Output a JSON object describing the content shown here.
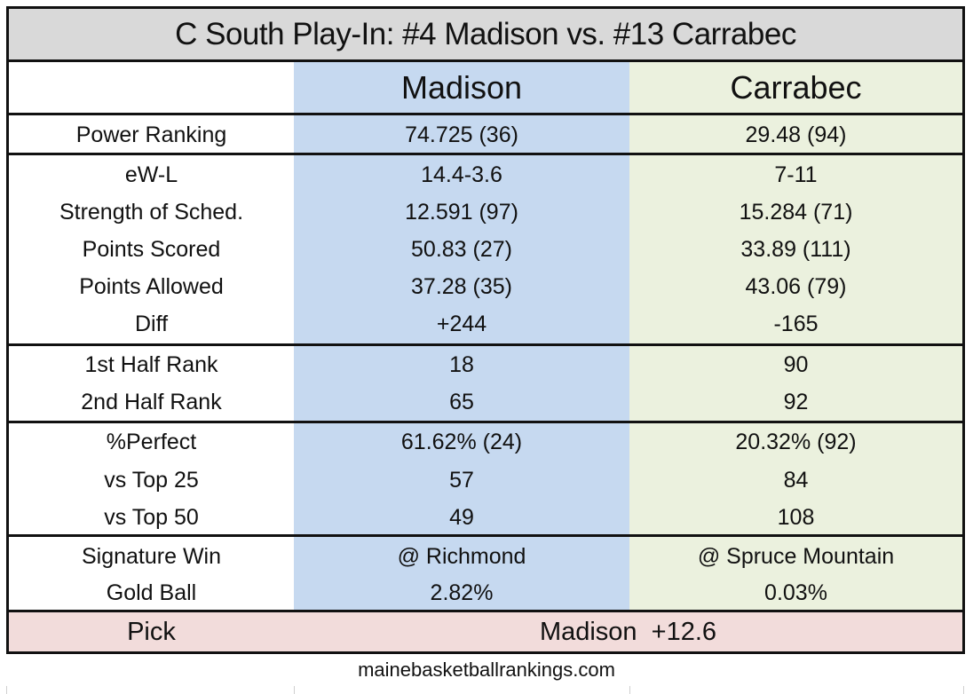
{
  "title": "C South Play-In: #4 Madison vs. #13 Carrabec",
  "teams": {
    "home": "Madison",
    "away": "Carrabec"
  },
  "groups": [
    {
      "rows": [
        {
          "label": "Power Ranking",
          "madison": "74.725 (36)",
          "carrabec": "29.48 (94)"
        }
      ]
    },
    {
      "rows": [
        {
          "label": "eW-L",
          "madison": "14.4-3.6",
          "carrabec": "7-11"
        },
        {
          "label": "Strength of Sched.",
          "madison": "12.591 (97)",
          "carrabec": "15.284 (71)"
        },
        {
          "label": "Points Scored",
          "madison": "50.83 (27)",
          "carrabec": "33.89 (111)"
        },
        {
          "label": "Points Allowed",
          "madison": "37.28 (35)",
          "carrabec": "43.06 (79)"
        },
        {
          "label": "Diff",
          "madison": "+244",
          "carrabec": "-165"
        }
      ]
    },
    {
      "rows": [
        {
          "label": "1st Half Rank",
          "madison": "18",
          "carrabec": "90"
        },
        {
          "label": "2nd Half Rank",
          "madison": "65",
          "carrabec": "92"
        }
      ]
    },
    {
      "rows": [
        {
          "label": "%Perfect",
          "madison": "61.62% (24)",
          "carrabec": "20.32% (92)"
        },
        {
          "label": "vs Top 25",
          "madison": "57",
          "carrabec": "84"
        },
        {
          "label": "vs Top 50",
          "madison": "49",
          "carrabec": "108"
        }
      ]
    },
    {
      "rows": [
        {
          "label": "Signature Win",
          "madison": "@ Richmond",
          "carrabec": "@ Spruce Mountain"
        },
        {
          "label": "Gold Ball",
          "madison": "2.82%",
          "carrabec": "0.03%"
        }
      ]
    }
  ],
  "pick": {
    "label": "Pick",
    "value": "Madison  +12.6"
  },
  "footer": "mainebasketballrankings.com",
  "colors": {
    "title_bg": "#d9d9d9",
    "madison_bg": "#c6d9f0",
    "carrabec_bg": "#ebf1de",
    "pick_bg": "#f2dcdb"
  }
}
